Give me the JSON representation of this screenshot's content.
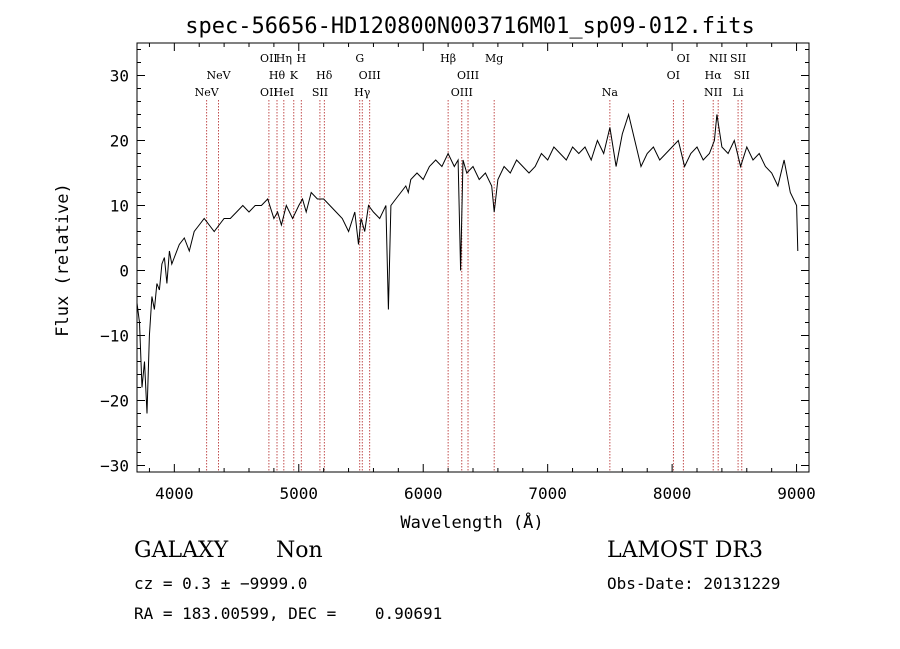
{
  "colors": {
    "axis": "#000000",
    "line_marker": "#b22222",
    "spectrum": "#000000"
  },
  "chart_data": {
    "type": "line",
    "title": "spec-56656-HD120800N003716M01_sp09-012.fits",
    "xlabel": "Wavelength (Å)",
    "ylabel": "Flux (relative)",
    "xlim": [
      3700,
      9100
    ],
    "ylim": [
      -31,
      35
    ],
    "xticks": [
      {
        "v": 4000,
        "label": "4000"
      },
      {
        "v": 5000,
        "label": "5000"
      },
      {
        "v": 6000,
        "label": "6000"
      },
      {
        "v": 7000,
        "label": "7000"
      },
      {
        "v": 8000,
        "label": "8000"
      },
      {
        "v": 9000,
        "label": "9000"
      }
    ],
    "yticks": [
      {
        "v": -30,
        "label": "−30"
      },
      {
        "v": -20,
        "label": "−20"
      },
      {
        "v": -10,
        "label": "−10"
      },
      {
        "v": 0,
        "label": "0"
      },
      {
        "v": 10,
        "label": "10"
      },
      {
        "v": 20,
        "label": "20"
      },
      {
        "v": 30,
        "label": "30"
      }
    ],
    "spectrum": {
      "x": [
        3700,
        3720,
        3740,
        3760,
        3780,
        3800,
        3820,
        3840,
        3860,
        3880,
        3900,
        3920,
        3940,
        3960,
        3980,
        4000,
        4040,
        4080,
        4120,
        4160,
        4200,
        4240,
        4280,
        4320,
        4360,
        4400,
        4450,
        4500,
        4550,
        4600,
        4650,
        4700,
        4750,
        4800,
        4830,
        4860,
        4900,
        4950,
        5000,
        5030,
        5060,
        5100,
        5150,
        5200,
        5250,
        5300,
        5350,
        5400,
        5450,
        5480,
        5500,
        5530,
        5560,
        5600,
        5650,
        5700,
        5720,
        5740,
        5780,
        5820,
        5860,
        5880,
        5900,
        5950,
        6000,
        6050,
        6100,
        6150,
        6200,
        6250,
        6280,
        6300,
        6320,
        6350,
        6400,
        6450,
        6500,
        6550,
        6570,
        6600,
        6650,
        6700,
        6750,
        6800,
        6850,
        6900,
        6950,
        7000,
        7050,
        7100,
        7150,
        7200,
        7250,
        7300,
        7350,
        7400,
        7450,
        7500,
        7550,
        7600,
        7650,
        7700,
        7750,
        7800,
        7850,
        7900,
        7950,
        8000,
        8050,
        8100,
        8150,
        8200,
        8250,
        8300,
        8340,
        8360,
        8400,
        8450,
        8500,
        8550,
        8600,
        8650,
        8700,
        8750,
        8800,
        8850,
        8900,
        8950,
        9000,
        9010
      ],
      "y": [
        -5,
        -8,
        -18,
        -14,
        -22,
        -10,
        -4,
        -6,
        -2,
        -3,
        1,
        2,
        -2,
        3,
        1,
        2,
        4,
        5,
        3,
        6,
        7,
        8,
        7,
        6,
        7,
        8,
        8,
        9,
        10,
        9,
        10,
        10,
        11,
        8,
        9,
        7,
        10,
        8,
        10,
        11,
        9,
        12,
        11,
        11,
        10,
        9,
        8,
        6,
        9,
        4,
        8,
        6,
        10,
        9,
        8,
        10,
        -6,
        10,
        11,
        12,
        13,
        12,
        14,
        15,
        14,
        16,
        17,
        16,
        18,
        16,
        17,
        0,
        17,
        15,
        16,
        14,
        15,
        13,
        9,
        14,
        16,
        15,
        17,
        16,
        15,
        16,
        18,
        17,
        19,
        18,
        17,
        19,
        18,
        19,
        17,
        20,
        18,
        22,
        16,
        21,
        24,
        20,
        16,
        18,
        19,
        17,
        18,
        19,
        20,
        16,
        18,
        19,
        17,
        18,
        20,
        24,
        19,
        18,
        20,
        16,
        19,
        17,
        18,
        16,
        15,
        13,
        17,
        12,
        10,
        3
      ]
    },
    "lines": [
      {
        "x": 4260,
        "labels": [
          "NeV"
        ],
        "rows": [
          2
        ]
      },
      {
        "x": 4355,
        "labels": [
          "NeV"
        ],
        "rows": [
          1
        ]
      },
      {
        "x": 4760,
        "labels": [
          "OII",
          "OII"
        ],
        "rows": [
          0,
          2
        ]
      },
      {
        "x": 4825,
        "labels": [
          "Hθ"
        ],
        "rows": [
          1
        ]
      },
      {
        "x": 4880,
        "labels": [
          "Hη",
          "HeI"
        ],
        "rows": [
          0,
          2
        ]
      },
      {
        "x": 4960,
        "labels": [
          "K"
        ],
        "rows": [
          1
        ]
      },
      {
        "x": 5020,
        "labels": [
          "H"
        ],
        "rows": [
          0
        ]
      },
      {
        "x": 5170,
        "labels": [
          "SII"
        ],
        "rows": [
          2
        ]
      },
      {
        "x": 5205,
        "labels": [
          "Hδ"
        ],
        "rows": [
          1
        ]
      },
      {
        "x": 5490,
        "labels": [
          "G"
        ],
        "rows": [
          0
        ]
      },
      {
        "x": 5510,
        "labels": [
          "Hγ"
        ],
        "rows": [
          2
        ]
      },
      {
        "x": 5570,
        "labels": [
          "OIII"
        ],
        "rows": [
          1
        ]
      },
      {
        "x": 6200,
        "labels": [
          "Hβ"
        ],
        "rows": [
          0
        ]
      },
      {
        "x": 6310,
        "labels": [
          "OIII"
        ],
        "rows": [
          2
        ]
      },
      {
        "x": 6360,
        "labels": [
          "OIII"
        ],
        "rows": [
          1
        ]
      },
      {
        "x": 6570,
        "labels": [
          "Mg"
        ],
        "rows": [
          0
        ]
      },
      {
        "x": 7500,
        "labels": [
          "Na"
        ],
        "rows": [
          2
        ]
      },
      {
        "x": 8010,
        "labels": [
          "OI"
        ],
        "rows": [
          1
        ]
      },
      {
        "x": 8090,
        "labels": [
          "OI"
        ],
        "rows": [
          0
        ]
      },
      {
        "x": 8330,
        "labels": [
          "Hα",
          "NII"
        ],
        "rows": [
          1,
          2
        ]
      },
      {
        "x": 8370,
        "labels": [
          "NII"
        ],
        "rows": [
          0
        ]
      },
      {
        "x": 8530,
        "labels": [
          "SII",
          "Li"
        ],
        "rows": [
          0,
          2
        ]
      },
      {
        "x": 8560,
        "labels": [
          "SII"
        ],
        "rows": [
          1
        ]
      }
    ]
  },
  "footer": {
    "object_class": "GALAXY",
    "subclass": "Non",
    "survey": "LAMOST DR3",
    "cz_line": "cz = 0.3 ± −9999.0",
    "obs_date": "Obs-Date: 20131229",
    "coords": "RA = 183.00599, DEC =    0.90691"
  }
}
